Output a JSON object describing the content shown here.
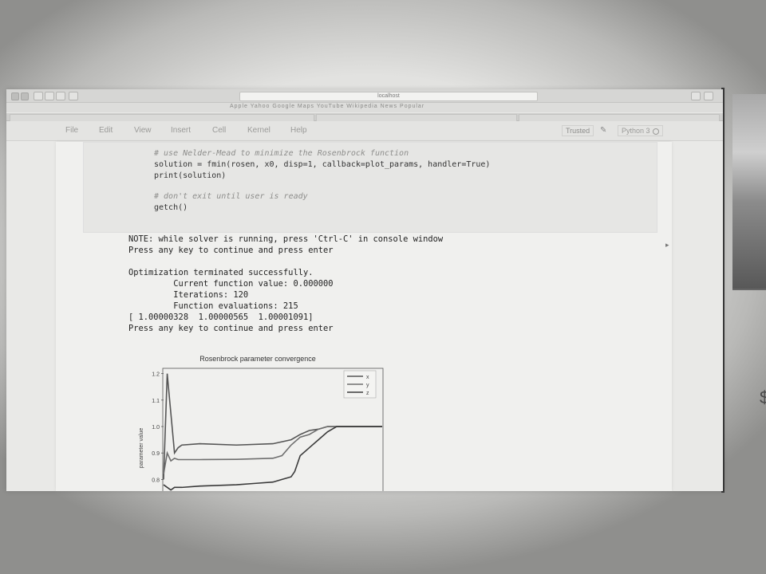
{
  "browser": {
    "url": "localhost",
    "bookmarks": "Apple  Yahoo  Google Maps  YouTube  Wikipedia  News  Popular"
  },
  "menubar": {
    "items": [
      "File",
      "Edit",
      "View",
      "Insert",
      "Cell",
      "Kernel",
      "Help"
    ],
    "trusted": "Trusted",
    "kernel": "Python 3"
  },
  "code": {
    "comment1": "# use Nelder-Mead to minimize the Rosenbrock function",
    "line1": "solution = fmin(rosen, x0, disp=1, callback=plot_params, handler=True)",
    "line2": "print(solution)",
    "comment2": "# don't exit until user is ready",
    "line3": "getch()"
  },
  "output": {
    "lines": [
      "NOTE: while solver is running, press 'Ctrl-C' in console window",
      "Press any key to continue and press enter",
      "",
      "Optimization terminated successfully.",
      "         Current function value: 0.000000",
      "         Iterations: 120",
      "         Function evaluations: 215",
      "[ 1.00000328  1.00000565  1.00001091]",
      "Press any key to continue and press enter"
    ]
  },
  "chart_data": {
    "type": "line",
    "title": "Rosenbrock parameter convergence",
    "xlabel": "",
    "ylabel": "parameter value",
    "yticks": [
      "1.2",
      "1.1",
      "1.0",
      "0.9",
      "0.8"
    ],
    "ylim": [
      0.75,
      1.22
    ],
    "xlim": [
      0,
      120
    ],
    "legend_position": "top-right",
    "series": [
      {
        "name": "x",
        "color": "#555555",
        "x": [
          0,
          2,
          4,
          6,
          8,
          10,
          20,
          40,
          60,
          70,
          75,
          80,
          85,
          90,
          95,
          100,
          110,
          120
        ],
        "values": [
          0.8,
          1.2,
          1.05,
          0.9,
          0.92,
          0.93,
          0.935,
          0.93,
          0.935,
          0.95,
          0.97,
          0.985,
          0.99,
          1.0,
          1.0,
          1.0,
          1.0,
          1.0
        ]
      },
      {
        "name": "y",
        "color": "#6e6e6e",
        "x": [
          0,
          2,
          4,
          6,
          8,
          10,
          20,
          40,
          60,
          65,
          70,
          75,
          80,
          85,
          90,
          95,
          100,
          110,
          120
        ],
        "values": [
          0.82,
          0.9,
          0.87,
          0.88,
          0.875,
          0.875,
          0.875,
          0.876,
          0.88,
          0.89,
          0.93,
          0.96,
          0.97,
          0.99,
          1.0,
          1.0,
          1.0,
          1.0,
          1.0
        ]
      },
      {
        "name": "z",
        "color": "#3a3a3a",
        "x": [
          0,
          4,
          6,
          10,
          20,
          40,
          50,
          60,
          65,
          70,
          72,
          75,
          80,
          85,
          90,
          95,
          100,
          110,
          120
        ],
        "values": [
          0.78,
          0.76,
          0.77,
          0.77,
          0.775,
          0.78,
          0.785,
          0.79,
          0.8,
          0.81,
          0.83,
          0.89,
          0.92,
          0.95,
          0.98,
          1.0,
          1.0,
          1.0,
          1.0
        ]
      }
    ]
  },
  "colors": {
    "background": "#e2e2e0",
    "notebook": "#f0f0ee",
    "code_cell": "#e6e6e4",
    "text": "#222222"
  }
}
